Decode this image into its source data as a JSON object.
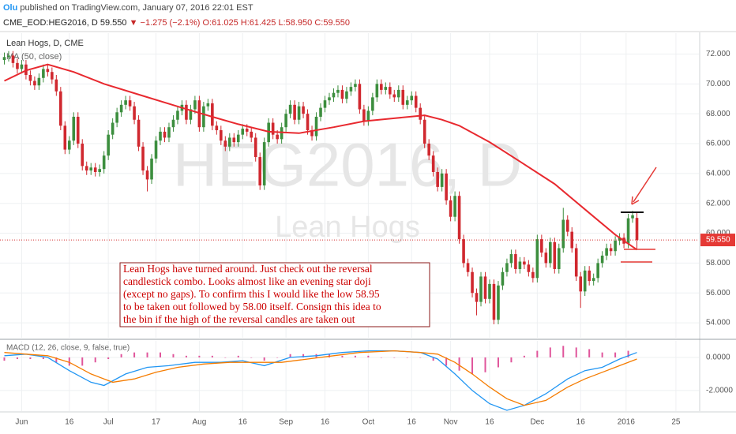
{
  "header": {
    "author": "Olu",
    "published": "published on TradingView.com, January 07, 2016 22:01 EST",
    "symbol": "CME_EOD:HEG2016, D",
    "price": "59.550",
    "change": "▼ −1.275 (−2.1%)",
    "ohlc": "O:61.025 H:61.425 L:58.950 C:59.550"
  },
  "chart_data": [
    {
      "type": "candlestick",
      "title": "Lean Hogs, D, CME",
      "watermark": "HEG2016, D",
      "watermark_subtitle": "Lean Hogs",
      "open": [
        71.6,
        71.8,
        71.9,
        71.4,
        71.0,
        71.3,
        70.6,
        70.2,
        69.9,
        70.4,
        71.0,
        70.8,
        70.3,
        69.5,
        67.2,
        65.6,
        66.2,
        67.8,
        66.0,
        64.5,
        64.2,
        64.4,
        64.1,
        64.3,
        65.2,
        66.6,
        67.4,
        68.1,
        68.6,
        68.9,
        68.5,
        67.6,
        65.8,
        64.2,
        63.6,
        65.0,
        66.2,
        66.8,
        66.4,
        67.1,
        67.6,
        68.2,
        68.6,
        67.6,
        68.3,
        68.9,
        67.1,
        68.5,
        68.7,
        67.2,
        66.9,
        66.2,
        65.8,
        66.4,
        66.1,
        66.6,
        67.0,
        66.8,
        66.4,
        65.1,
        63.2,
        66.1,
        67.4,
        66.6,
        66.3,
        67.1,
        68.0,
        68.6,
        67.6,
        68.5,
        68.0,
        66.9,
        66.5,
        67.8,
        68.4,
        68.9,
        69.1,
        69.4,
        69.6,
        69.0,
        69.5,
        69.8,
        70.0,
        68.3,
        67.5,
        68.2,
        69.1,
        70.0,
        69.6,
        69.8,
        69.3,
        69.1,
        69.6,
        68.6,
        68.9,
        69.2,
        68.4,
        67.6,
        66.0,
        65.2,
        64.1,
        63.1,
        64.0,
        62.2,
        61.1,
        62.5,
        59.6,
        58.0,
        57.4,
        56.0,
        55.4,
        57.1,
        55.6,
        56.6,
        54.2,
        56.5,
        57.4,
        58.0,
        58.6,
        57.6,
        58.1,
        57.9,
        57.4,
        57.0,
        59.6,
        58.7,
        58.0,
        59.4,
        57.6,
        59.0,
        60.9,
        60.1,
        59.0,
        57.1,
        56.1,
        57.5,
        56.8,
        57.0,
        58.0,
        58.5,
        59.0,
        58.8,
        59.5,
        59.7,
        59.3,
        61.0,
        61.025
      ],
      "high": [
        72.1,
        72.2,
        72.2,
        71.7,
        71.6,
        71.6,
        70.9,
        70.5,
        70.7,
        71.3,
        71.3,
        71.1,
        70.6,
        69.8,
        67.5,
        66.5,
        68.1,
        68.1,
        66.3,
        64.8,
        64.7,
        64.7,
        64.6,
        65.5,
        66.9,
        67.7,
        68.4,
        68.9,
        69.2,
        69.2,
        68.8,
        67.9,
        66.1,
        64.5,
        65.3,
        66.5,
        67.1,
        67.1,
        67.4,
        67.9,
        68.5,
        68.9,
        68.9,
        68.6,
        69.2,
        69.2,
        68.8,
        69.0,
        69.0,
        67.5,
        67.2,
        66.5,
        66.7,
        66.7,
        66.9,
        67.3,
        67.3,
        67.1,
        66.7,
        65.4,
        66.4,
        67.7,
        67.7,
        66.9,
        67.4,
        68.3,
        68.9,
        68.9,
        68.8,
        68.8,
        68.3,
        67.2,
        68.1,
        68.7,
        69.2,
        69.4,
        69.7,
        69.9,
        69.9,
        69.8,
        70.1,
        70.3,
        70.3,
        68.6,
        68.5,
        69.4,
        70.3,
        70.3,
        70.1,
        70.1,
        69.6,
        69.9,
        69.9,
        69.2,
        69.5,
        69.5,
        68.7,
        67.9,
        66.3,
        65.5,
        64.4,
        64.3,
        64.3,
        62.5,
        62.8,
        62.8,
        59.9,
        58.3,
        57.7,
        56.3,
        57.4,
        57.4,
        56.9,
        56.9,
        56.8,
        57.7,
        58.3,
        58.9,
        58.9,
        58.4,
        58.4,
        58.2,
        57.7,
        59.9,
        59.9,
        59.0,
        59.7,
        59.7,
        59.3,
        61.7,
        61.2,
        60.4,
        59.3,
        57.4,
        57.8,
        57.8,
        57.3,
        58.3,
        58.8,
        59.3,
        59.3,
        59.8,
        60.0,
        60.0,
        61.3,
        61.5,
        61.425
      ],
      "low": [
        71.3,
        71.5,
        71.1,
        70.7,
        70.7,
        70.3,
        69.9,
        69.6,
        69.6,
        70.1,
        70.5,
        70.0,
        69.2,
        66.9,
        65.3,
        65.3,
        65.9,
        65.7,
        64.2,
        63.9,
        63.9,
        63.8,
        63.8,
        64.0,
        64.9,
        66.3,
        67.1,
        67.8,
        68.3,
        68.2,
        67.3,
        65.5,
        63.9,
        62.8,
        63.3,
        64.7,
        65.9,
        66.1,
        66.1,
        66.8,
        67.3,
        67.9,
        67.3,
        67.3,
        68.0,
        66.8,
        66.8,
        68.2,
        66.9,
        66.6,
        65.9,
        65.5,
        65.5,
        65.8,
        65.8,
        66.3,
        66.5,
        66.1,
        64.8,
        62.9,
        62.9,
        65.8,
        66.3,
        66.0,
        66.0,
        66.8,
        67.7,
        67.3,
        67.3,
        67.7,
        66.6,
        66.2,
        66.2,
        67.5,
        68.1,
        68.6,
        68.8,
        69.1,
        68.7,
        68.7,
        69.2,
        69.5,
        68.0,
        67.2,
        67.2,
        67.9,
        68.8,
        69.3,
        69.3,
        69.0,
        68.8,
        68.8,
        68.3,
        68.3,
        68.6,
        68.1,
        67.3,
        65.7,
        64.9,
        63.8,
        62.8,
        62.8,
        61.9,
        60.8,
        60.8,
        59.3,
        57.7,
        57.1,
        55.7,
        54.5,
        55.1,
        55.3,
        55.3,
        53.9,
        53.9,
        56.2,
        57.1,
        57.7,
        57.3,
        57.3,
        57.6,
        57.1,
        56.7,
        56.7,
        58.4,
        57.7,
        57.7,
        57.3,
        57.3,
        58.7,
        59.8,
        58.7,
        56.8,
        55.0,
        55.8,
        56.5,
        56.5,
        56.7,
        57.7,
        58.2,
        58.5,
        58.5,
        59.2,
        59.0,
        59.0,
        60.7,
        58.95
      ],
      "close": [
        71.8,
        71.9,
        71.4,
        71.0,
        71.3,
        70.6,
        70.2,
        69.9,
        70.4,
        71.0,
        70.8,
        70.3,
        69.5,
        67.2,
        65.6,
        66.2,
        67.8,
        66.0,
        64.5,
        64.2,
        64.4,
        64.1,
        64.3,
        65.2,
        66.6,
        67.4,
        68.1,
        68.6,
        68.9,
        68.5,
        67.6,
        65.8,
        64.2,
        63.6,
        65.0,
        66.2,
        66.8,
        66.4,
        67.1,
        67.6,
        68.2,
        68.6,
        67.6,
        68.3,
        68.9,
        67.1,
        68.5,
        68.7,
        67.2,
        66.9,
        66.2,
        65.8,
        66.4,
        66.1,
        66.6,
        67.0,
        66.8,
        66.4,
        65.1,
        63.2,
        66.1,
        67.4,
        66.6,
        66.3,
        67.1,
        68.0,
        68.6,
        67.6,
        68.5,
        68.0,
        66.9,
        66.5,
        67.8,
        68.4,
        68.9,
        69.1,
        69.4,
        69.6,
        69.0,
        69.5,
        69.8,
        70.0,
        68.3,
        67.5,
        68.2,
        69.1,
        70.0,
        69.6,
        69.8,
        69.3,
        69.1,
        69.6,
        68.6,
        68.9,
        69.2,
        68.4,
        67.6,
        66.0,
        65.2,
        64.1,
        63.1,
        64.0,
        62.2,
        61.1,
        62.5,
        59.6,
        58.0,
        57.4,
        56.0,
        55.4,
        57.1,
        55.6,
        56.6,
        54.2,
        56.5,
        57.4,
        58.0,
        58.6,
        57.6,
        58.1,
        57.9,
        57.4,
        57.0,
        59.6,
        58.7,
        58.0,
        59.4,
        57.6,
        59.0,
        60.9,
        60.1,
        59.0,
        57.1,
        56.1,
        57.5,
        56.8,
        57.0,
        58.0,
        58.5,
        59.0,
        58.8,
        59.5,
        59.7,
        59.3,
        61.0,
        61.2,
        59.55
      ],
      "up_color": "#3c8e3e",
      "down_color": "#d0282f",
      "series": [
        {
          "name": "MA (50, close)",
          "color": "#e8292f",
          "x": [
            0,
            5,
            10,
            16,
            23,
            32,
            41,
            48,
            54,
            61,
            68,
            76,
            83,
            90,
            97,
            101,
            105,
            112,
            119,
            127,
            134,
            141,
            146
          ],
          "values": [
            70.2,
            70.9,
            71.3,
            70.8,
            70.0,
            69.2,
            68.4,
            67.8,
            67.3,
            66.8,
            66.7,
            67.1,
            67.5,
            67.7,
            67.9,
            67.6,
            67.2,
            66.1,
            64.8,
            63.3,
            61.6,
            59.9,
            58.9
          ]
        }
      ],
      "last_price": {
        "value": 59.55,
        "label": "59.550"
      },
      "xlim": [
        -1,
        160.3
      ],
      "xticks": [
        {
          "value": 4,
          "label": "Jun"
        },
        {
          "value": 15,
          "label": "16"
        },
        {
          "value": 24,
          "label": "Jul"
        },
        {
          "value": 35,
          "label": "17"
        },
        {
          "value": 45,
          "label": "Aug"
        },
        {
          "value": 55,
          "label": "16"
        },
        {
          "value": 65,
          "label": "Sep"
        },
        {
          "value": 74,
          "label": "16"
        },
        {
          "value": 84,
          "label": "Oct"
        },
        {
          "value": 94,
          "label": "16"
        },
        {
          "value": 103,
          "label": "Nov"
        },
        {
          "value": 112,
          "label": "16"
        },
        {
          "value": 123,
          "label": "Dec"
        },
        {
          "value": 133,
          "label": "16"
        },
        {
          "value": 143.5,
          "label": "2016"
        },
        {
          "value": 155,
          "label": "25"
        }
      ],
      "ylim": [
        53,
        73.4
      ],
      "yticks": [
        {
          "value": 54,
          "label": "54.000"
        },
        {
          "value": 56,
          "label": "56.000"
        },
        {
          "value": 58,
          "label": "58.000"
        },
        {
          "value": 60,
          "label": "60.000"
        },
        {
          "value": 62,
          "label": "62.000"
        },
        {
          "value": 64,
          "label": "64.000"
        },
        {
          "value": 66,
          "label": "66.000"
        },
        {
          "value": 68,
          "label": "68.000"
        },
        {
          "value": 70,
          "label": "70.000"
        },
        {
          "value": 72,
          "label": "72.000"
        }
      ],
      "grid": true,
      "annotation": [
        "Lean Hogs have turned around. Just check out the reversal",
        "candlestick combo. Looks almost like an evening star doji",
        "(except no gaps). To confirm this I would like the low 58.95",
        "to be taken out followed by 58.00 itself. Consign this idea to",
        "the bin if the high of the reversal candles are taken out"
      ]
    },
    {
      "type": "macd",
      "title": "MACD (12, 26, close, 9, false, true)",
      "ylim": [
        -3.25,
        1.0
      ],
      "yticks": [
        {
          "value": 0,
          "label": "0.0000"
        },
        {
          "value": -2,
          "label": "-2.0000"
        }
      ],
      "grid": true,
      "histogram": {
        "color": "#e0559b",
        "x": [
          0,
          3,
          6,
          9,
          12,
          15,
          18,
          21,
          24,
          27,
          30,
          33,
          36,
          39,
          42,
          45,
          48,
          51,
          54,
          57,
          60,
          63,
          66,
          69,
          72,
          75,
          78,
          81,
          84,
          87,
          90,
          93,
          96,
          99,
          102,
          105,
          108,
          111,
          114,
          117,
          120,
          123,
          126,
          129,
          132,
          135,
          138,
          141,
          144
        ],
        "values": [
          -0.2,
          -0.1,
          -0.1,
          -0.1,
          -0.3,
          -0.5,
          -0.5,
          -0.3,
          -0.1,
          0.2,
          0.3,
          0.3,
          0.3,
          0.2,
          0.1,
          0.1,
          0.1,
          0.0,
          0.1,
          0.0,
          -0.2,
          0.0,
          0.2,
          0.2,
          0.2,
          0.2,
          0.1,
          0.1,
          0.1,
          0.0,
          0.0,
          0.0,
          0.0,
          -0.2,
          -0.5,
          -0.8,
          -1.0,
          -0.9,
          -0.6,
          -0.3,
          0.1,
          0.4,
          0.6,
          0.7,
          0.6,
          0.5,
          0.3,
          0.3,
          0.4
        ]
      },
      "macd_line": {
        "color": "#2196f3",
        "x": [
          0,
          5,
          10,
          15,
          20,
          23,
          28,
          33,
          38,
          44,
          50,
          55,
          60,
          66,
          72,
          78,
          84,
          90,
          96,
          100,
          104,
          108,
          112,
          116,
          120,
          125,
          130,
          134,
          138,
          142,
          146
        ],
        "values": [
          0.1,
          0.2,
          0.0,
          -0.8,
          -1.5,
          -1.7,
          -1.0,
          -0.6,
          -0.5,
          -0.3,
          -0.3,
          -0.2,
          -0.5,
          0.0,
          0.1,
          0.3,
          0.4,
          0.4,
          0.3,
          -0.1,
          -1.0,
          -2.0,
          -2.8,
          -3.2,
          -2.9,
          -2.2,
          -1.3,
          -0.8,
          -0.6,
          -0.1,
          0.3
        ]
      },
      "signal_line": {
        "color": "#f57c00",
        "x": [
          0,
          5,
          10,
          15,
          20,
          25,
          30,
          35,
          40,
          46,
          52,
          58,
          64,
          70,
          76,
          82,
          90,
          96,
          100,
          104,
          108,
          112,
          116,
          120,
          125,
          130,
          134,
          138,
          142,
          146
        ],
        "values": [
          0.3,
          0.2,
          0.1,
          -0.3,
          -1.0,
          -1.5,
          -1.3,
          -0.9,
          -0.6,
          -0.4,
          -0.3,
          -0.3,
          -0.3,
          -0.1,
          0.1,
          0.3,
          0.4,
          0.3,
          0.2,
          -0.3,
          -1.0,
          -1.8,
          -2.5,
          -2.9,
          -2.6,
          -1.8,
          -1.3,
          -0.9,
          -0.5,
          -0.1
        ]
      }
    }
  ]
}
